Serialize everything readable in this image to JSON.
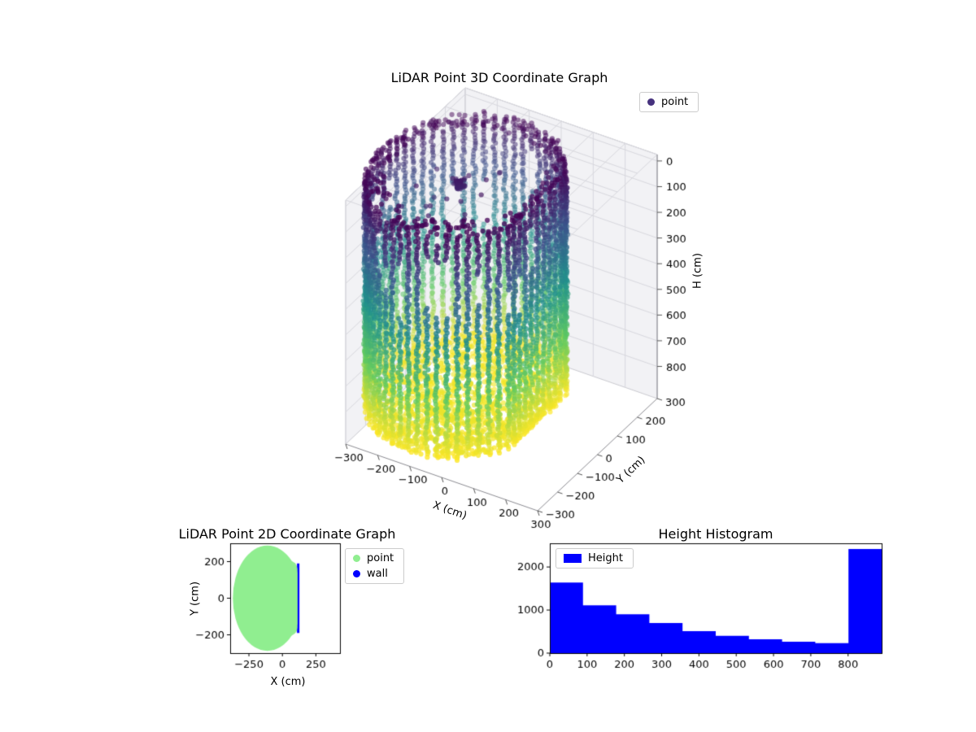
{
  "figure": {
    "background": "#ffffff"
  },
  "chart_data": [
    {
      "id": "lidar-3d",
      "type": "scatter",
      "projection": "3d",
      "title": "LiDAR Point 3D Coordinate Graph",
      "xlabel": "X (cm)",
      "ylabel": "Y (cm)",
      "zlabel": "H (cm)",
      "xticks": [
        -300,
        -200,
        -100,
        0,
        100,
        200,
        300
      ],
      "yticks": [
        -300,
        -200,
        -100,
        0,
        100,
        200,
        300
      ],
      "zticks": [
        0,
        100,
        200,
        300,
        400,
        500,
        600,
        700,
        800
      ],
      "xlim": [
        -300,
        300
      ],
      "ylim": [
        -300,
        300
      ],
      "zlim": [
        0,
        800
      ],
      "zaxis_inverted": true,
      "grid": true,
      "legend": [
        {
          "label": "point",
          "color": "#46327e"
        }
      ],
      "legend_position": "upper right",
      "colormap": "viridis",
      "colormap_stops": [
        "#440154",
        "#3b528b",
        "#21918c",
        "#5ec962",
        "#fde725"
      ],
      "point_cloud": {
        "shape": "cylindrical room scan, points colored by height (dark purple at H=0 top, yellow at floor H=885)",
        "center_x": -112,
        "center_y": 0,
        "radius_x": 258,
        "radius_y": 288,
        "flat_wall_x": 112,
        "height_min": 0,
        "height_max": 885,
        "wall_columns": 60,
        "wall_step_cm": 11,
        "floor_point_count": 1700,
        "ceiling_rim_point_count": 220,
        "color_by": "height"
      }
    },
    {
      "id": "lidar-2d",
      "type": "scatter",
      "title": "LiDAR Point 2D Coordinate Graph",
      "xlabel": "X (cm)",
      "ylabel": "Y (cm)",
      "xticks": [
        -250,
        0,
        250
      ],
      "yticks": [
        -200,
        0,
        200
      ],
      "xlim": [
        -390,
        430
      ],
      "ylim": [
        -300,
        300
      ],
      "legend": [
        {
          "label": "point",
          "color": "#90ee90"
        },
        {
          "label": "wall",
          "color": "#0000ff"
        }
      ],
      "legend_position": "outside upper right",
      "region": {
        "description": "solid light-green disc of scan points, flat vertical wall on right side",
        "center_x": -112,
        "center_y": 0,
        "radius_x": 258,
        "radius_y": 288,
        "flat_wall_x": 112,
        "flat_wall_half_span": 200
      }
    },
    {
      "id": "height-histogram",
      "type": "bar",
      "title": "Height Histogram",
      "xlabel": "",
      "ylabel": "",
      "legend": [
        {
          "label": "Height",
          "color": "#0000ff"
        }
      ],
      "legend_position": "upper left",
      "bin_edges": [
        0,
        89,
        178,
        267,
        356,
        445,
        534,
        623,
        712,
        801,
        890
      ],
      "values": [
        1640,
        1110,
        900,
        700,
        510,
        400,
        320,
        265,
        230,
        2420
      ],
      "xticks": [
        0,
        100,
        200,
        300,
        400,
        500,
        600,
        700,
        800
      ],
      "yticks": [
        0,
        1000,
        2000
      ],
      "xlim": [
        0,
        890
      ],
      "ylim": [
        0,
        2550
      ]
    }
  ]
}
